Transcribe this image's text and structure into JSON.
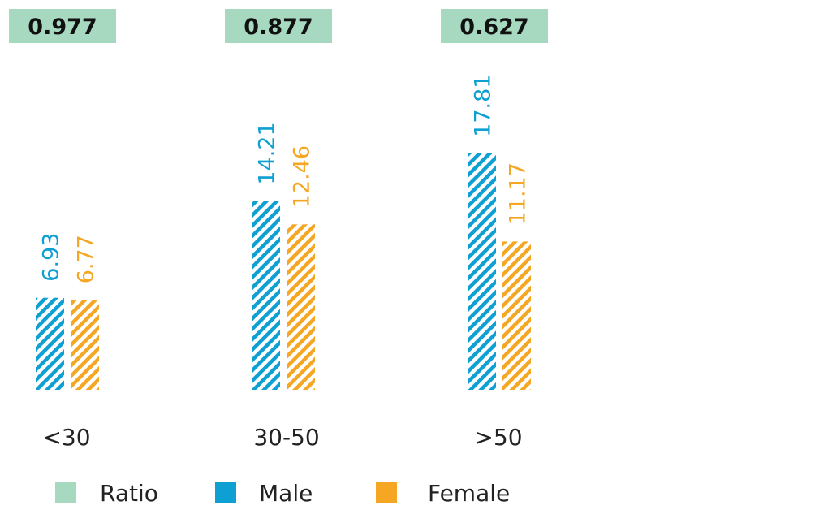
{
  "chart_data": {
    "type": "bar",
    "categories": [
      "<30",
      "30-50",
      ">50"
    ],
    "ratio_labels": [
      "0.977",
      "0.877",
      "0.627"
    ],
    "series": [
      {
        "name": "Male",
        "values": [
          6.93,
          14.21,
          17.81
        ],
        "labels": [
          "6.93",
          "14.21",
          "17.81"
        ],
        "color": "#0e9fd3",
        "pattern": "diagonal-hatch"
      },
      {
        "name": "Female",
        "values": [
          6.77,
          12.46,
          11.17
        ],
        "labels": [
          "6.77",
          "12.46",
          "11.17"
        ],
        "color": "#f5a623",
        "pattern": "diagonal-hatch"
      }
    ],
    "legend": {
      "placement": "bottom",
      "items": [
        {
          "label": "Ratio",
          "color": "#a6d9c0"
        },
        {
          "label": "Male",
          "color": "#0e9fd3"
        },
        {
          "label": "Female",
          "color": "#f5a623"
        }
      ]
    },
    "ratio_box_color": "#a6d9c0",
    "grid": false,
    "title": "",
    "xlabel": "",
    "ylabel": ""
  }
}
